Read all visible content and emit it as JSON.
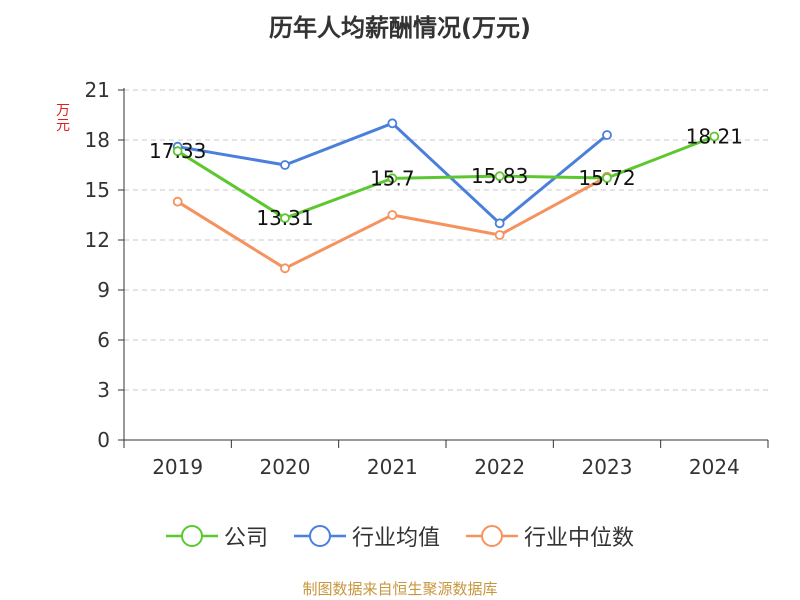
{
  "title": "历年人均薪酬情况(万元)",
  "footer": "制图数据来自恒生聚源数据库",
  "legend": [
    {
      "name": "公司",
      "color": "#5cc72e"
    },
    {
      "name": "行业均值",
      "color": "#4a7fdb"
    },
    {
      "name": "行业中位数",
      "color": "#f5925e"
    }
  ],
  "chart_data": {
    "type": "line",
    "title": "历年人均薪酬情况(万元)",
    "ylabel": "万元",
    "xlabel": "",
    "categories": [
      "2019",
      "2020",
      "2021",
      "2022",
      "2023",
      "2024"
    ],
    "ylim": [
      0,
      21
    ],
    "yticks": [
      0,
      3,
      6,
      9,
      12,
      15,
      18,
      21
    ],
    "grid": true,
    "legend_position": "bottom",
    "series": [
      {
        "name": "公司",
        "color": "#5cc72e",
        "values": [
          17.33,
          13.31,
          15.7,
          15.83,
          15.72,
          18.21
        ],
        "labels": [
          "17.33",
          "13.31",
          "15.7",
          "15.83",
          "15.72",
          "18.21"
        ]
      },
      {
        "name": "行业均值",
        "color": "#4a7fdb",
        "values": [
          17.6,
          16.5,
          19.0,
          13.0,
          18.3,
          null
        ]
      },
      {
        "name": "行业中位数",
        "color": "#f5925e",
        "values": [
          14.3,
          10.3,
          13.5,
          12.3,
          15.8,
          null
        ]
      }
    ]
  }
}
